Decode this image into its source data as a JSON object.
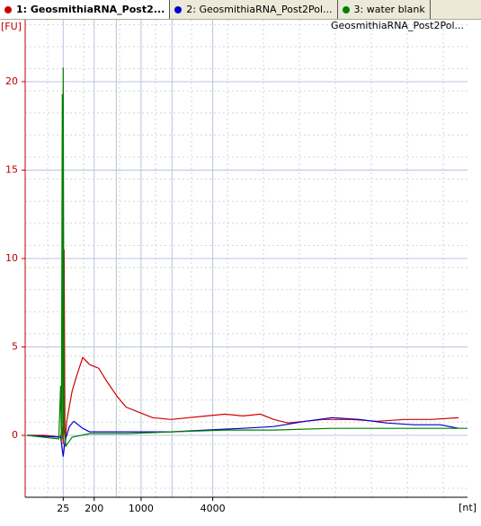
{
  "tabs": [
    {
      "label": "1: GeosmithiaRNA_Post2...",
      "color": "#d00000",
      "active": true
    },
    {
      "label": "2: GeosmithiaRNA_Post2Pol...",
      "color": "#0000d0",
      "active": false
    },
    {
      "label": "3: water blank",
      "color": "#008000",
      "active": false
    }
  ],
  "chart_data": {
    "type": "line",
    "title": "GeosmithiaRNA_Post2Pol...",
    "y_label": "[FU]",
    "x_label": "[nt]",
    "xlim": [
      19,
      69
    ],
    "ylim": [
      -3.5,
      23.5
    ],
    "yticks": [
      0,
      5,
      10,
      15,
      20
    ],
    "xticks": [
      {
        "value": 23.3,
        "label": "25"
      },
      {
        "value": 26.8,
        "label": "200"
      },
      {
        "value": 32.1,
        "label": "1000"
      },
      {
        "value": 40.2,
        "label": "4000"
      }
    ],
    "ladder_lines": [
      29.3,
      35.6
    ],
    "grid": true,
    "series": [
      {
        "name": "1: GeosmithiaRNA_Post2...",
        "color": "#d00000",
        "x": [
          19.2,
          21.2,
          23.0,
          23.2,
          23.3,
          23.4,
          23.5,
          23.7,
          24.3,
          24.9,
          25.5,
          26.3,
          27.3,
          28.3,
          29.4,
          30.4,
          31.9,
          33.4,
          35.5,
          37.5,
          39.5,
          41.6,
          43.6,
          45.6,
          47.1,
          48.7,
          50.7,
          52.7,
          55.8,
          58.8,
          61.9,
          64.9,
          68.0
        ],
        "values": [
          0,
          0,
          -0.1,
          0.5,
          -0.5,
          10.5,
          -0.6,
          0.8,
          2.5,
          3.5,
          4.4,
          4.0,
          3.8,
          3.0,
          2.2,
          1.6,
          1.3,
          1.0,
          0.9,
          1.0,
          1.1,
          1.2,
          1.1,
          1.2,
          0.9,
          0.7,
          0.8,
          0.9,
          0.9,
          0.8,
          0.9,
          0.9,
          1.0
        ]
      },
      {
        "name": "2: GeosmithiaRNA_Post2Pol...",
        "color": "#0000d0",
        "x": [
          19.2,
          23.0,
          23.3,
          23.5,
          24.0,
          24.5,
          25.5,
          26.3,
          28.3,
          31.9,
          35.5,
          39.5,
          43.6,
          47.1,
          50.7,
          53.7,
          56.8,
          59.8,
          62.9,
          65.9,
          68.0
        ],
        "values": [
          0,
          -0.1,
          -1.2,
          -0.3,
          0.5,
          0.8,
          0.4,
          0.2,
          0.2,
          0.2,
          0.2,
          0.3,
          0.4,
          0.5,
          0.8,
          1.0,
          0.9,
          0.7,
          0.6,
          0.6,
          0.4
        ]
      },
      {
        "name": "3: water blank",
        "color": "#008000",
        "x": [
          19.2,
          22.8,
          23.0,
          23.1,
          23.2,
          23.25,
          23.3,
          23.4,
          23.6,
          24.3,
          26.3,
          30.4,
          35.5,
          41.6,
          47.1,
          53.7,
          59.8,
          65.9,
          69.0
        ],
        "values": [
          0,
          -0.2,
          2.8,
          -0.3,
          19.3,
          -0.2,
          20.8,
          0.3,
          -0.6,
          -0.1,
          0.1,
          0.1,
          0.2,
          0.3,
          0.3,
          0.4,
          0.4,
          0.4,
          0.4
        ]
      }
    ]
  }
}
